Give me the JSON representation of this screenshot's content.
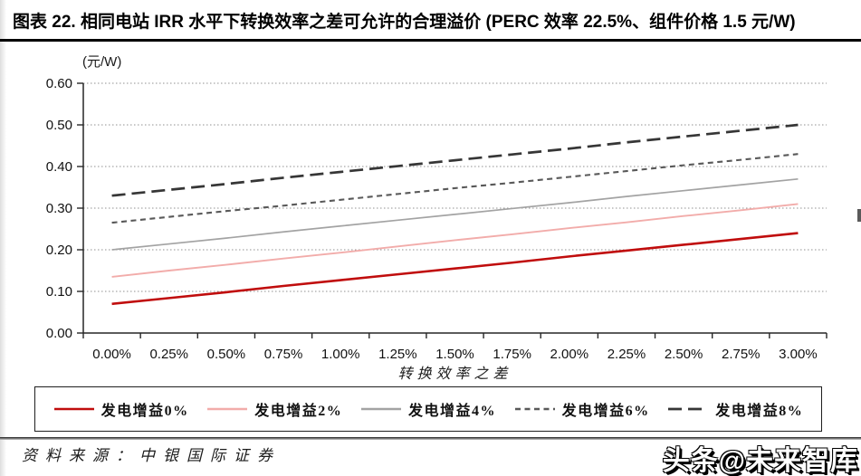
{
  "page": {
    "title": "图表 22. 相同电站 IRR 水平下转换效率之差可允许的合理溢价 (PERC 效率 22.5%、组件价格 1.5 元/W)",
    "source": "资料来源：中银国际证券",
    "watermark": "头条@未来智库"
  },
  "chart_data": {
    "type": "line",
    "title": "",
    "y_unit_label": "(元/W)",
    "xlabel": "转换效率之差",
    "ylabel": "(元/W)",
    "categories": [
      "0.00%",
      "0.25%",
      "0.50%",
      "0.75%",
      "1.00%",
      "1.25%",
      "1.50%",
      "1.75%",
      "2.00%",
      "2.25%",
      "2.50%",
      "2.75%",
      "3.00%"
    ],
    "ylim": [
      0,
      0.6
    ],
    "ytick_step": 0.1,
    "ytick_labels": [
      "0.00",
      "0.10",
      "0.20",
      "0.30",
      "0.40",
      "0.50",
      "0.60"
    ],
    "grid": "horizontal-dotted",
    "legend_position": "bottom-box",
    "axis_color": "#262626",
    "gridline_color": "#909090",
    "series": [
      {
        "name": "发电增益0%",
        "color": "#c00d0d",
        "dash": null,
        "width": 2.6,
        "values": [
          0.07,
          0.084,
          0.098,
          0.113,
          0.127,
          0.141,
          0.155,
          0.169,
          0.184,
          0.198,
          0.212,
          0.226,
          0.24
        ]
      },
      {
        "name": "发电增益2%",
        "color": "#f2acaa",
        "dash": null,
        "width": 1.9,
        "values": [
          0.135,
          0.15,
          0.164,
          0.179,
          0.193,
          0.208,
          0.223,
          0.237,
          0.252,
          0.266,
          0.281,
          0.295,
          0.31
        ]
      },
      {
        "name": "发电增益4%",
        "color": "#a3a3a3",
        "dash": null,
        "width": 1.7,
        "values": [
          0.2,
          0.214,
          0.228,
          0.243,
          0.257,
          0.271,
          0.285,
          0.299,
          0.313,
          0.328,
          0.342,
          0.356,
          0.37
        ]
      },
      {
        "name": "发电增益6%",
        "color": "#595959",
        "dash": "6 4.5",
        "width": 2.1,
        "values": [
          0.265,
          0.279,
          0.293,
          0.306,
          0.32,
          0.334,
          0.348,
          0.361,
          0.375,
          0.389,
          0.403,
          0.416,
          0.43
        ]
      },
      {
        "name": "发电增益8%",
        "color": "#363636",
        "dash": "15 7",
        "width": 2.7,
        "values": [
          0.33,
          0.344,
          0.358,
          0.373,
          0.387,
          0.401,
          0.415,
          0.429,
          0.443,
          0.458,
          0.472,
          0.486,
          0.5
        ]
      }
    ]
  }
}
